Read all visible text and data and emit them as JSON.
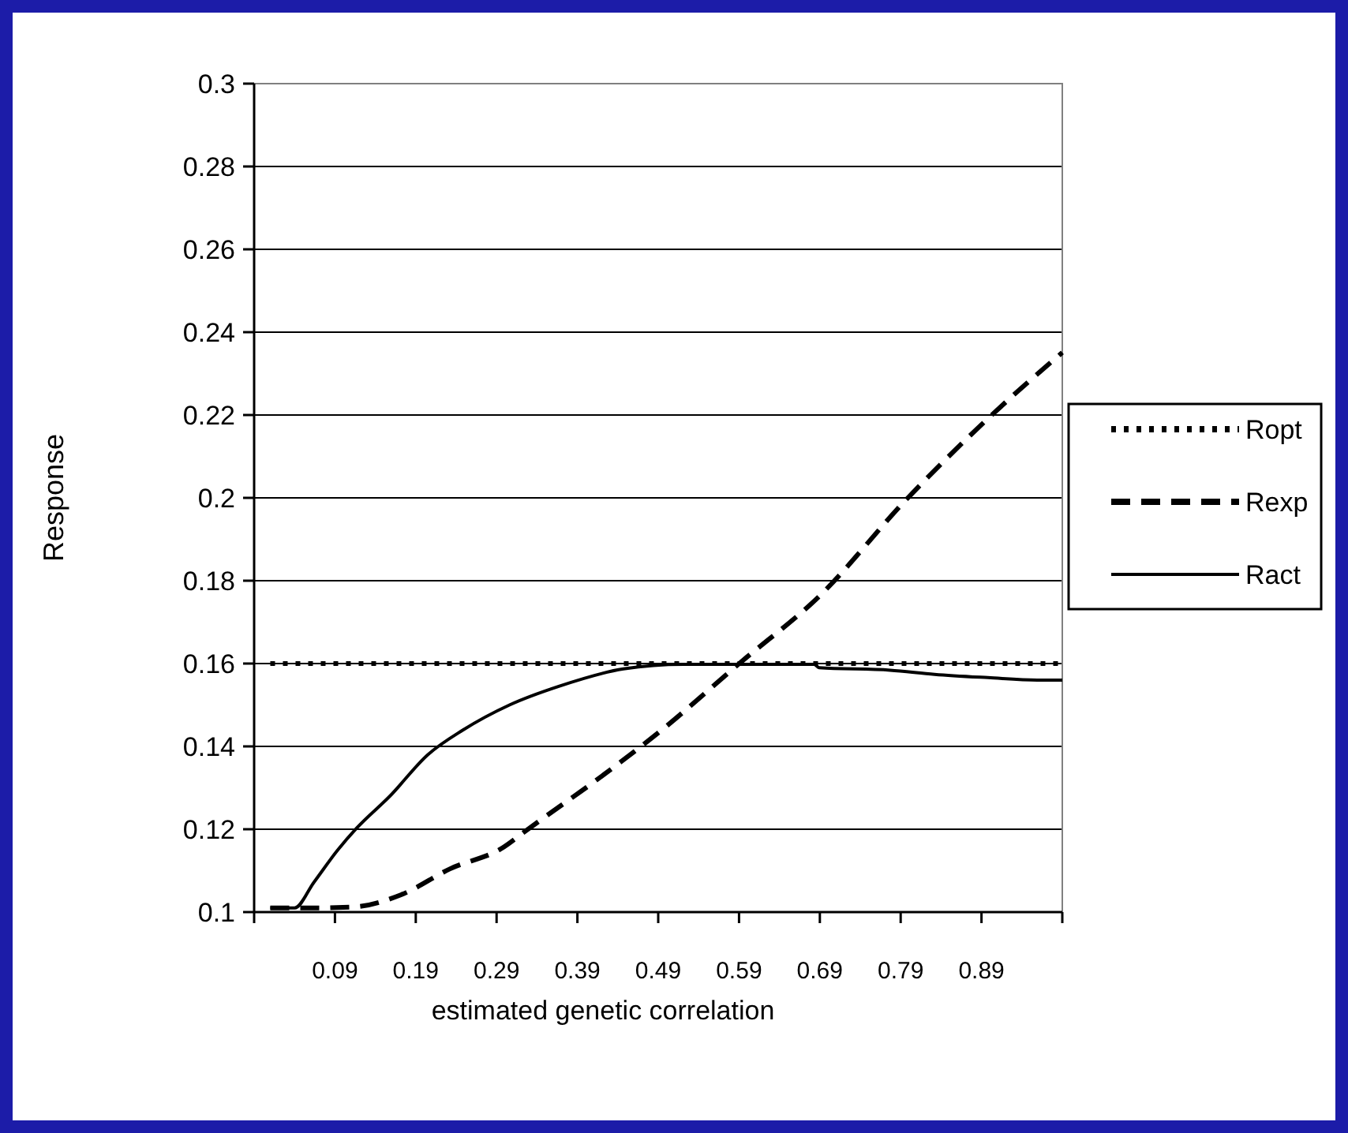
{
  "chart_data": {
    "type": "line",
    "xlabel": "estimated genetic correlation",
    "ylabel": "Response",
    "xlim": [
      -0.01,
      0.99
    ],
    "xticks": [
      {
        "value": -0.01,
        "label": null
      },
      0.09,
      0.19,
      0.29,
      0.39,
      0.49,
      0.59,
      0.69,
      0.79,
      0.89,
      {
        "value": 0.99,
        "label": null
      }
    ],
    "ylim": [
      0.1,
      0.3
    ],
    "yticks": [
      0.1,
      0.12,
      0.14,
      0.16,
      0.18,
      0.2,
      0.22,
      0.24,
      0.26,
      0.28,
      0.3
    ],
    "grid": "y",
    "legend": "right",
    "marker": "none",
    "series": [
      {
        "name": "Ropt",
        "color": "#000000",
        "line_style": "dotted",
        "x": [
          0.01,
          0.99
        ],
        "values": [
          0.16,
          0.16
        ]
      },
      {
        "name": "Rexp",
        "color": "#000000",
        "line_style": "dashed",
        "x": [
          0.01,
          0.06,
          0.111,
          0.172,
          0.232,
          0.299,
          0.326,
          0.42,
          0.494,
          0.592,
          0.689,
          0.797,
          0.906,
          0.99
        ],
        "values": [
          0.101,
          0.101,
          0.1012,
          0.1042,
          0.1104,
          0.1157,
          0.1196,
          0.1328,
          0.1439,
          0.1603,
          0.1762,
          0.1996,
          0.2206,
          0.2351
        ]
      },
      {
        "name": "Ract",
        "color": "#000000",
        "line_style": "solid",
        "x": [
          0.01,
          0.04,
          0.064,
          0.0935,
          0.117,
          0.158,
          0.205,
          0.248,
          0.306,
          0.367,
          0.447,
          0.521,
          0.683,
          0.689,
          0.777,
          0.832,
          0.898,
          0.959,
          0.99
        ],
        "values": [
          0.101,
          0.101,
          0.1072,
          0.115,
          0.1203,
          0.128,
          0.138,
          0.1439,
          0.15,
          0.1545,
          0.1587,
          0.1598,
          0.1598,
          0.159,
          0.1584,
          0.1574,
          0.1566,
          0.156,
          0.156
        ]
      }
    ]
  }
}
